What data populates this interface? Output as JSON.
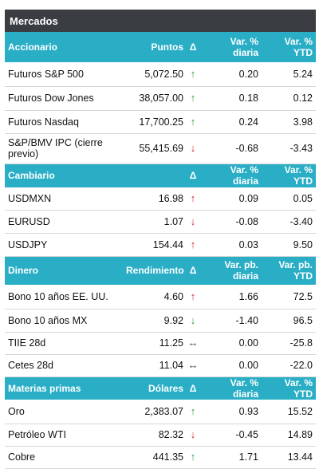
{
  "title": "Mercados",
  "sections": [
    {
      "name": "Accionario",
      "cols": [
        "Puntos",
        "Δ",
        "Var. %\ndiaria",
        "Var. % YTD"
      ],
      "rows": [
        {
          "label": "Futuros S&P 500",
          "value": "5,072.50",
          "arrow": "↑",
          "trend": "up",
          "daily": "0.20",
          "ytd": "5.24"
        },
        {
          "label": "Futuros Dow Jones",
          "value": "38,057.00",
          "arrow": "↑",
          "trend": "up",
          "daily": "0.18",
          "ytd": "0.12"
        },
        {
          "label": "Futuros Nasdaq",
          "value": "17,700.25",
          "arrow": "↑",
          "trend": "up",
          "daily": "0.24",
          "ytd": "3.98"
        },
        {
          "label": "S&P/BMV IPC (cierre previo)",
          "value": "55,415.69",
          "arrow": "↓",
          "trend": "down",
          "daily": "-0.68",
          "ytd": "-3.43"
        }
      ]
    },
    {
      "name": "Cambiario",
      "cols": [
        "",
        "Δ",
        "Var. % diaria",
        "Var. % YTD"
      ],
      "rows": [
        {
          "label": "USDMXN",
          "value": "16.98",
          "arrow": "↑",
          "trend": "down",
          "daily": "0.09",
          "ytd": "0.05"
        },
        {
          "label": "EURUSD",
          "value": "1.07",
          "arrow": "↓",
          "trend": "down",
          "daily": "-0.08",
          "ytd": "-3.40"
        },
        {
          "label": "USDJPY",
          "value": "154.44",
          "arrow": "↑",
          "trend": "down",
          "daily": "0.03",
          "ytd": "9.50"
        }
      ]
    },
    {
      "name": "Dinero",
      "cols": [
        "Rendimiento",
        "Δ",
        "Var. pb.\ndiaria",
        "Var. pb. YTD"
      ],
      "rows": [
        {
          "label": "Bono 10 años EE. UU.",
          "value": "4.60",
          "arrow": "↑",
          "trend": "down",
          "daily": "1.66",
          "ytd": "72.5"
        },
        {
          "label": "Bono 10 años MX",
          "value": "9.92",
          "arrow": "↓",
          "trend": "up",
          "daily": "-1.40",
          "ytd": "96.5"
        },
        {
          "label": "TIIE 28d",
          "value": "11.25",
          "arrow": "↔",
          "trend": "flat",
          "daily": "0.00",
          "ytd": "-25.8"
        },
        {
          "label": "Cetes 28d",
          "value": "11.04",
          "arrow": "↔",
          "trend": "flat",
          "daily": "0.00",
          "ytd": "-22.0"
        }
      ]
    },
    {
      "name": "Materias primas",
      "cols": [
        "Dólares",
        "Δ",
        "Var. % diaria",
        "Var. % YTD"
      ],
      "rows": [
        {
          "label": "Oro",
          "value": "2,383.07",
          "arrow": "↑",
          "trend": "up",
          "daily": "0.93",
          "ytd": "15.52"
        },
        {
          "label": "Petróleo WTI",
          "value": "82.32",
          "arrow": "↓",
          "trend": "down",
          "daily": "-0.45",
          "ytd": "14.89"
        },
        {
          "label": "Cobre",
          "value": "441.35",
          "arrow": "↑",
          "trend": "up",
          "daily": "1.71",
          "ytd": "13.44"
        }
      ]
    }
  ],
  "colors": {
    "title_bg": "#3a3d42",
    "header_bg": "#29aec6",
    "up": "#2e9b3c",
    "down": "#d1262d"
  }
}
